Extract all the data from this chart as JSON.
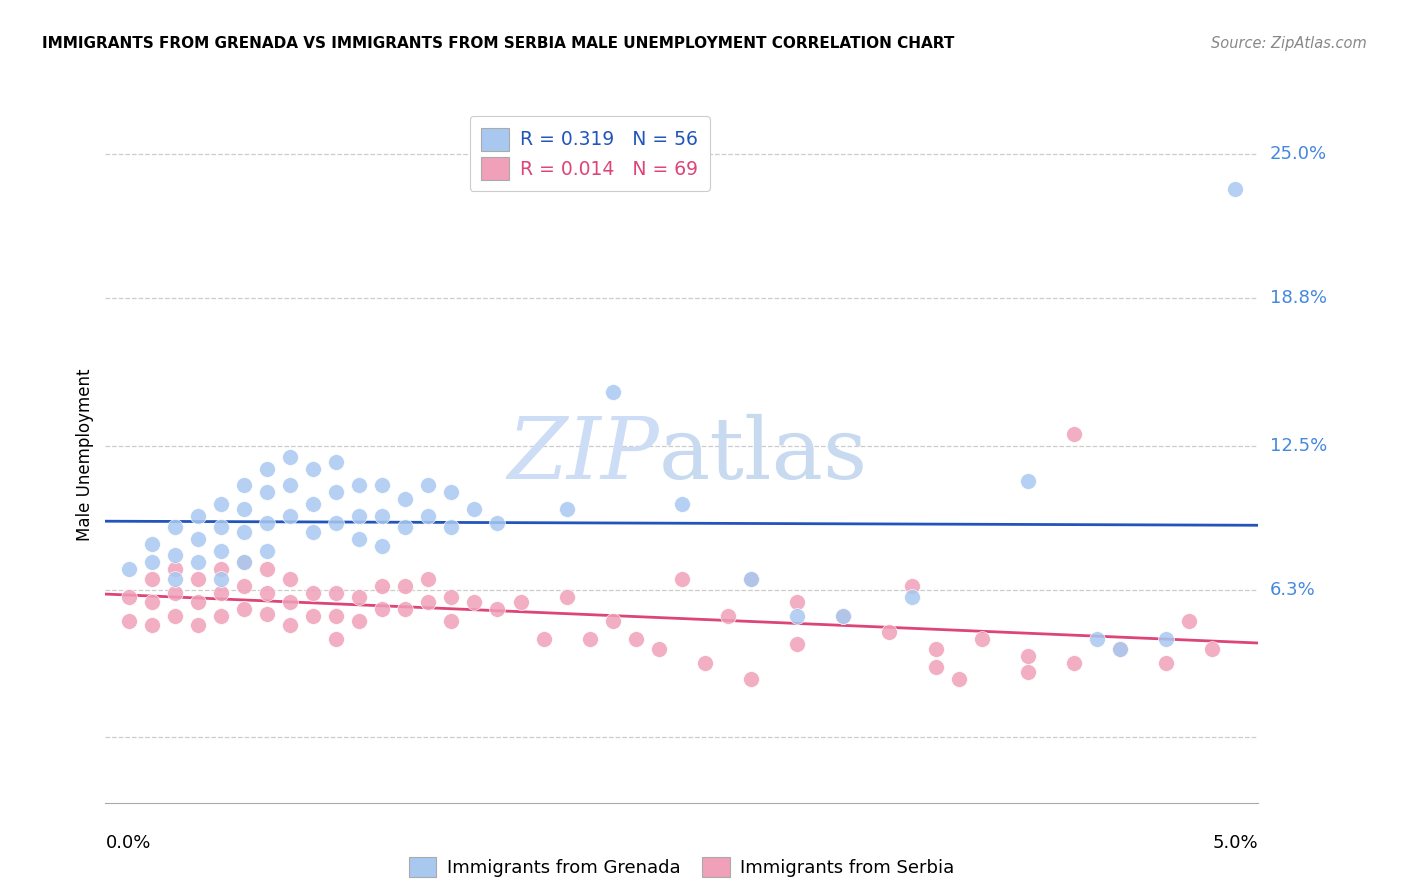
{
  "title": "IMMIGRANTS FROM GRENADA VS IMMIGRANTS FROM SERBIA MALE UNEMPLOYMENT CORRELATION CHART",
  "source": "Source: ZipAtlas.com",
  "ylabel": "Male Unemployment",
  "ytick_vals": [
    0.0,
    0.063,
    0.125,
    0.188,
    0.25
  ],
  "ytick_labels": [
    "",
    "6.3%",
    "12.5%",
    "18.8%",
    "25.0%"
  ],
  "xlim": [
    0.0,
    0.05
  ],
  "ylim": [
    -0.028,
    0.27
  ],
  "legend_grenada": "R = 0.319   N = 56",
  "legend_serbia": "R = 0.014   N = 69",
  "color_grenada": "#a8c8f0",
  "color_serbia": "#f0a0b8",
  "color_line_grenada": "#2255bb",
  "color_line_serbia": "#dd4477",
  "color_ytick": "#4488dd",
  "grenada_x": [
    0.001,
    0.002,
    0.002,
    0.003,
    0.003,
    0.003,
    0.004,
    0.004,
    0.004,
    0.005,
    0.005,
    0.005,
    0.005,
    0.006,
    0.006,
    0.006,
    0.006,
    0.007,
    0.007,
    0.007,
    0.007,
    0.008,
    0.008,
    0.008,
    0.009,
    0.009,
    0.009,
    0.01,
    0.01,
    0.01,
    0.011,
    0.011,
    0.011,
    0.012,
    0.012,
    0.012,
    0.013,
    0.013,
    0.014,
    0.014,
    0.015,
    0.015,
    0.016,
    0.017,
    0.02,
    0.022,
    0.025,
    0.028,
    0.03,
    0.032,
    0.035,
    0.04,
    0.043,
    0.044,
    0.046,
    0.049
  ],
  "grenada_y": [
    0.072,
    0.083,
    0.075,
    0.09,
    0.078,
    0.068,
    0.095,
    0.085,
    0.075,
    0.1,
    0.09,
    0.08,
    0.068,
    0.108,
    0.098,
    0.088,
    0.075,
    0.115,
    0.105,
    0.092,
    0.08,
    0.12,
    0.108,
    0.095,
    0.115,
    0.1,
    0.088,
    0.118,
    0.105,
    0.092,
    0.108,
    0.095,
    0.085,
    0.108,
    0.095,
    0.082,
    0.102,
    0.09,
    0.108,
    0.095,
    0.105,
    0.09,
    0.098,
    0.092,
    0.098,
    0.148,
    0.1,
    0.068,
    0.052,
    0.052,
    0.06,
    0.11,
    0.042,
    0.038,
    0.042,
    0.235
  ],
  "serbia_x": [
    0.001,
    0.001,
    0.002,
    0.002,
    0.002,
    0.003,
    0.003,
    0.003,
    0.004,
    0.004,
    0.004,
    0.005,
    0.005,
    0.005,
    0.006,
    0.006,
    0.006,
    0.007,
    0.007,
    0.007,
    0.008,
    0.008,
    0.008,
    0.009,
    0.009,
    0.01,
    0.01,
    0.01,
    0.011,
    0.011,
    0.012,
    0.012,
    0.013,
    0.013,
    0.014,
    0.014,
    0.015,
    0.015,
    0.016,
    0.017,
    0.018,
    0.019,
    0.02,
    0.021,
    0.022,
    0.023,
    0.024,
    0.025,
    0.026,
    0.027,
    0.028,
    0.028,
    0.03,
    0.03,
    0.032,
    0.034,
    0.036,
    0.038,
    0.04,
    0.042,
    0.044,
    0.046,
    0.047,
    0.048,
    0.035,
    0.036,
    0.037,
    0.04,
    0.042
  ],
  "serbia_y": [
    0.06,
    0.05,
    0.068,
    0.058,
    0.048,
    0.072,
    0.062,
    0.052,
    0.068,
    0.058,
    0.048,
    0.072,
    0.062,
    0.052,
    0.075,
    0.065,
    0.055,
    0.072,
    0.062,
    0.053,
    0.068,
    0.058,
    0.048,
    0.062,
    0.052,
    0.062,
    0.052,
    0.042,
    0.06,
    0.05,
    0.065,
    0.055,
    0.065,
    0.055,
    0.068,
    0.058,
    0.06,
    0.05,
    0.058,
    0.055,
    0.058,
    0.042,
    0.06,
    0.042,
    0.05,
    0.042,
    0.038,
    0.068,
    0.032,
    0.052,
    0.025,
    0.068,
    0.058,
    0.04,
    0.052,
    0.045,
    0.038,
    0.042,
    0.035,
    0.032,
    0.038,
    0.032,
    0.05,
    0.038,
    0.065,
    0.03,
    0.025,
    0.028,
    0.13
  ]
}
